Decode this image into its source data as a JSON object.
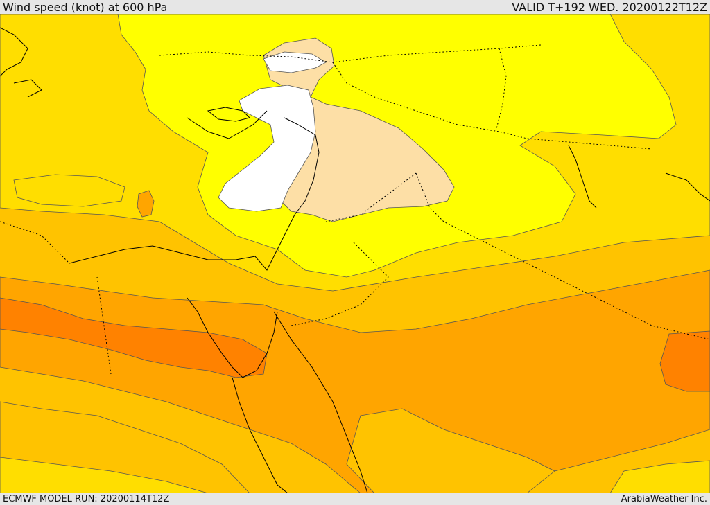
{
  "header": {
    "title": "Wind speed (knot) at 600 hPa",
    "valid": "VALID T+192 WED. 20200122T12Z"
  },
  "footer": {
    "model_run": "ECMWF MODEL RUN: 20200114T12Z",
    "credit": "ArabiaWeather Inc."
  },
  "map": {
    "field_colors": {
      "white": "#ffffff",
      "tan": "#fddfa6",
      "bright_yellow": "#ffff00",
      "yellow": "#ffde00",
      "light_orange": "#ffc300",
      "orange": "#ffa500",
      "deep_orange": "#ff8200"
    },
    "line_colors": {
      "coastline": "#000000",
      "border": "#000000",
      "contour": "#555555"
    }
  }
}
